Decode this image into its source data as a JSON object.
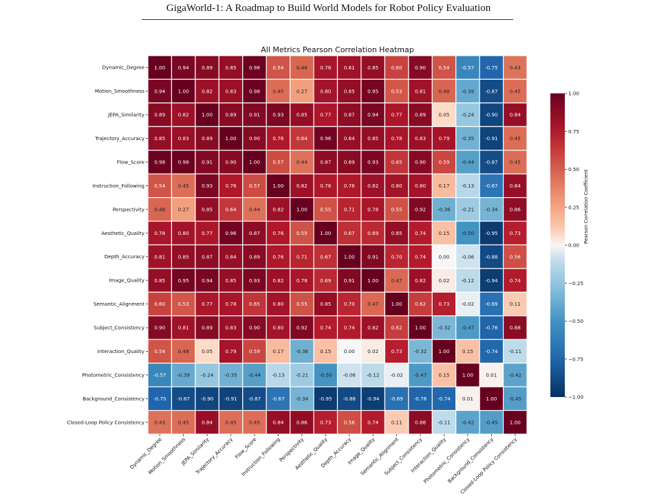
{
  "page": {
    "header": "GigaWorld-1: A Roadmap to Build World Models for Robot Policy Evaluation"
  },
  "chart_data": {
    "type": "heatmap",
    "title": "All Metrics Pearson Correlation Heatmap",
    "labels": [
      "Dynamic_Degree",
      "Motion_Smoothness",
      "JEPA_Similarity",
      "Trajectory_Accuracy",
      "Flow_Score",
      "Instruction_Following",
      "Perspectivity",
      "Aesthetic_Quality",
      "Depth_Accuracy",
      "Image_Quality",
      "Semantic_Alignment",
      "Subject_Consistency",
      "Interaction_Quality",
      "Photometric_Consistency",
      "Background_Consistency",
      "Closed-Loop Policy Consistency"
    ],
    "values": [
      [
        1.0,
        0.94,
        0.89,
        0.85,
        0.98,
        0.54,
        0.48,
        0.78,
        0.81,
        0.85,
        0.6,
        0.9,
        0.54,
        -0.57,
        -0.75,
        0.43
      ],
      [
        0.94,
        1.0,
        0.82,
        0.83,
        0.98,
        0.45,
        0.27,
        0.8,
        0.85,
        0.95,
        0.53,
        0.81,
        0.48,
        -0.39,
        -0.87,
        0.45
      ],
      [
        0.89,
        0.82,
        1.0,
        0.89,
        0.91,
        0.93,
        0.85,
        0.77,
        0.87,
        0.94,
        0.77,
        0.89,
        0.05,
        -0.24,
        -0.9,
        0.84
      ],
      [
        0.85,
        0.83,
        0.89,
        1.0,
        0.9,
        0.76,
        0.64,
        0.96,
        0.84,
        0.85,
        0.78,
        0.83,
        0.79,
        -0.35,
        -0.91,
        0.45
      ],
      [
        0.98,
        0.98,
        0.91,
        0.9,
        1.0,
        0.57,
        0.44,
        0.87,
        0.89,
        0.93,
        0.65,
        0.9,
        0.59,
        -0.44,
        -0.87,
        0.45
      ],
      [
        0.54,
        0.45,
        0.93,
        0.76,
        0.57,
        1.0,
        0.82,
        0.76,
        0.76,
        0.82,
        0.8,
        0.8,
        0.17,
        -0.13,
        -0.67,
        0.84
      ],
      [
        0.48,
        0.27,
        0.85,
        0.64,
        0.44,
        0.82,
        1.0,
        0.55,
        0.71,
        0.78,
        0.55,
        0.92,
        -0.36,
        -0.21,
        -0.34,
        0.86
      ],
      [
        0.78,
        0.8,
        0.77,
        0.96,
        0.87,
        0.76,
        0.55,
        1.0,
        0.67,
        0.69,
        0.85,
        0.74,
        0.15,
        -0.5,
        -0.95,
        0.73
      ],
      [
        0.81,
        0.85,
        0.87,
        0.84,
        0.89,
        0.76,
        0.71,
        0.67,
        1.0,
        0.91,
        0.7,
        0.74,
        0.0,
        -0.06,
        -0.88,
        0.56
      ],
      [
        0.85,
        0.95,
        0.94,
        0.85,
        0.93,
        0.82,
        0.78,
        0.69,
        0.91,
        1.0,
        0.47,
        0.82,
        0.02,
        -0.12,
        -0.94,
        0.74
      ],
      [
        0.6,
        0.53,
        0.77,
        0.78,
        0.65,
        0.8,
        0.55,
        0.85,
        0.7,
        0.47,
        1.0,
        0.62,
        0.73,
        -0.02,
        -0.69,
        0.11
      ],
      [
        0.9,
        0.81,
        0.89,
        0.83,
        0.9,
        0.8,
        0.92,
        0.74,
        0.74,
        0.82,
        0.62,
        1.0,
        -0.32,
        -0.47,
        -0.76,
        0.88
      ],
      [
        0.54,
        0.48,
        0.05,
        0.79,
        0.59,
        0.17,
        -0.36,
        0.15,
        0.0,
        0.02,
        0.73,
        -0.32,
        1.0,
        0.15,
        -0.74,
        -0.11
      ],
      [
        -0.57,
        -0.39,
        -0.24,
        -0.35,
        -0.44,
        -0.13,
        -0.21,
        -0.5,
        -0.06,
        -0.12,
        -0.02,
        -0.47,
        0.15,
        1.0,
        0.01,
        -0.42
      ],
      [
        -0.75,
        -0.87,
        -0.9,
        -0.91,
        -0.87,
        -0.67,
        -0.34,
        -0.95,
        -0.88,
        -0.94,
        -0.69,
        -0.76,
        -0.74,
        0.01,
        1.0,
        -0.45
      ],
      [
        0.43,
        0.45,
        0.84,
        0.45,
        0.45,
        0.84,
        0.86,
        0.73,
        0.56,
        0.74,
        0.11,
        0.88,
        -0.11,
        -0.42,
        -0.45,
        1.0
      ]
    ],
    "colorbar": {
      "title": "Pearson Correlation Coefficient",
      "range": [
        -1.0,
        1.0
      ],
      "ticks": [
        1.0,
        0.75,
        0.5,
        0.25,
        0.0,
        -0.25,
        -0.5,
        -0.75,
        -1.0
      ],
      "colormap": "RdBu_r"
    }
  }
}
